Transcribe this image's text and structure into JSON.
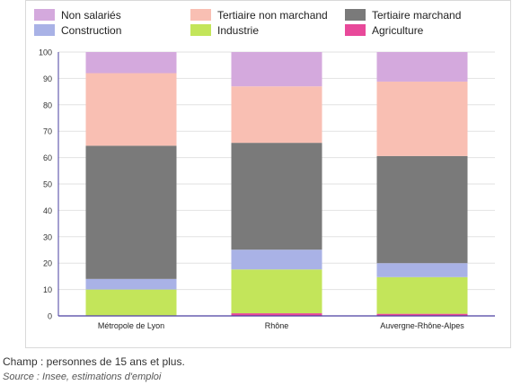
{
  "chart_data": {
    "type": "bar",
    "stacked": true,
    "categories": [
      "Métropole de Lyon",
      "Rhône",
      "Auvergne-Rhône-Alpes"
    ],
    "series": [
      {
        "name": "Agriculture",
        "color": "#e8499a",
        "values": [
          0.2,
          1.0,
          0.8
        ]
      },
      {
        "name": "Industrie",
        "color": "#c3e55a",
        "values": [
          9.8,
          16.6,
          13.9
        ]
      },
      {
        "name": "Construction",
        "color": "#a9b2e6",
        "values": [
          4.0,
          7.5,
          5.3
        ]
      },
      {
        "name": "Tertiaire marchand",
        "color": "#7a7a7a",
        "values": [
          50.5,
          40.5,
          40.6
        ]
      },
      {
        "name": "Tertiaire non marchand",
        "color": "#f9bfb3",
        "values": [
          27.5,
          21.4,
          28.2
        ]
      },
      {
        "name": "Non salariés",
        "color": "#d4a9dd",
        "values": [
          8.0,
          13.0,
          11.2
        ]
      }
    ],
    "legend_order": [
      "Non salariés",
      "Tertiaire non marchand",
      "Tertiaire marchand",
      "Construction",
      "Industrie",
      "Agriculture"
    ],
    "legend_position": "top",
    "ylim": [
      0,
      100
    ],
    "yticks": [
      0,
      10,
      20,
      30,
      40,
      50,
      60,
      70,
      80,
      90,
      100
    ],
    "grid": true,
    "axis_color": "#4a3fa0"
  },
  "notes": {
    "champ": "Champ : personnes de 15 ans et plus.",
    "source": "Source : Insee, estimations d'emploi"
  }
}
